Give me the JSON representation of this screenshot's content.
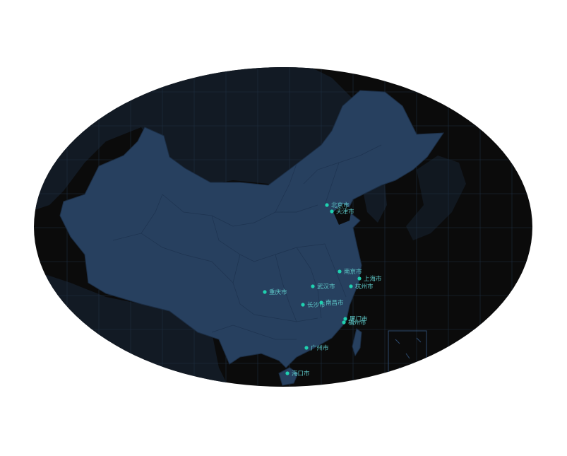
{
  "map": {
    "colors": {
      "sea_dark": "#0b0b0b",
      "land_neighbor": "#121a24",
      "china_fill": "#27405f",
      "china_border": "#1b2d44",
      "grid": "#1e2e40",
      "point": "#1fd1b0",
      "label": "#5ec8c8"
    },
    "cities": [
      {
        "id": "beijing",
        "name": "北京市"
      },
      {
        "id": "tianjin",
        "name": "天津市"
      },
      {
        "id": "nanjing",
        "name": "南京市"
      },
      {
        "id": "shanghai",
        "name": "上海市"
      },
      {
        "id": "wuhan",
        "name": "武汉市"
      },
      {
        "id": "hangzhou",
        "name": "杭州市"
      },
      {
        "id": "chongqing",
        "name": "重庆市"
      },
      {
        "id": "changsha",
        "name": "长沙市"
      },
      {
        "id": "nanchang",
        "name": "南昌市"
      },
      {
        "id": "xiamen",
        "name": "厦门市"
      },
      {
        "id": "fuzhou",
        "name": "福州市"
      },
      {
        "id": "guangzhou",
        "name": "广州市"
      },
      {
        "id": "haikou",
        "name": "海口市"
      }
    ]
  }
}
